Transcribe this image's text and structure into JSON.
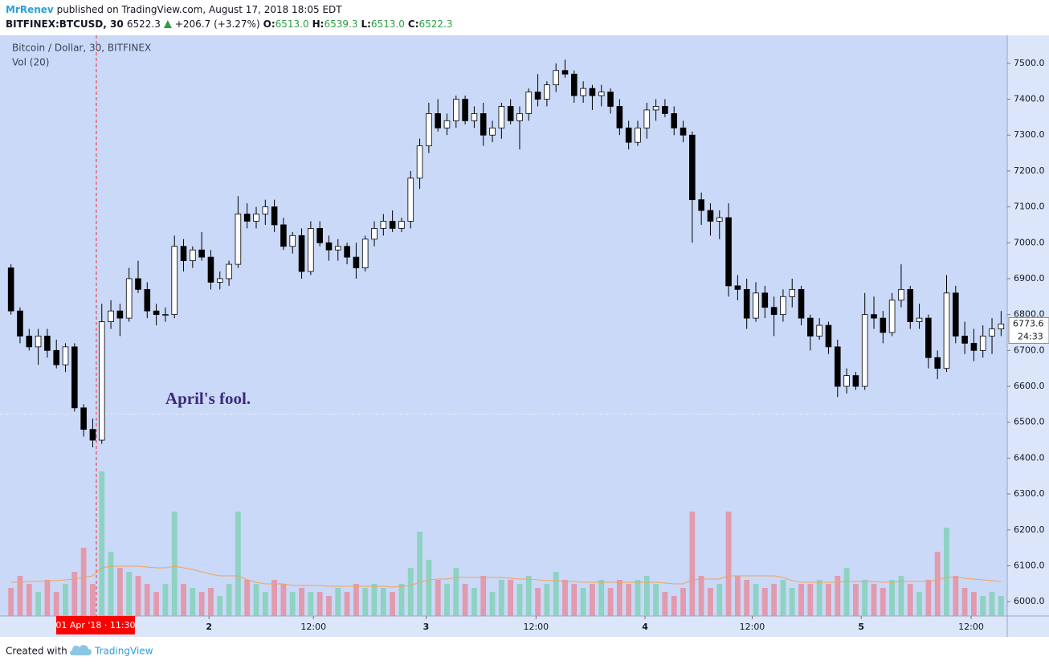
{
  "chart_data": {
    "type": "candlestick",
    "header": {
      "author": "MrRenev",
      "published": "published on TradingView.com, August 17, 2018 18:05 EDT",
      "symbol": "BITFINEX:BTCUSD, 30",
      "last": "6522.3",
      "change": "+206.7 (+3.27%)",
      "ohlc": [
        {
          "label": "O:",
          "value": "6513.0"
        },
        {
          "label": "H:",
          "value": "6539.3"
        },
        {
          "label": "L:",
          "value": "6513.0"
        },
        {
          "label": "C:",
          "value": "6522.3"
        }
      ]
    },
    "title": "Bitcoin / Dollar, 30, BITFINEX",
    "subtitle": "Vol (20)",
    "annotation": {
      "text": "April's fool.",
      "x": 17.5,
      "price": 6562
    },
    "crosshair": {
      "x": 9.9,
      "price": 6522.3,
      "label": "01 Apr '18 · 11:30"
    },
    "countdown": "24:33",
    "footer": {
      "text": "Created with",
      "brand": "TradingView"
    },
    "up_color": "#ffffff",
    "down_color": "#000000",
    "volume_up_color": "#7fcfb3",
    "volume_down_color": "#e8899a",
    "volume_ma_color": "#f5a05a",
    "background": "#c9d9f7",
    "grid": false,
    "xlim": [
      0,
      110
    ],
    "xticks": [
      {
        "value": 22.3,
        "label": "2"
      },
      {
        "value": 33.8,
        "label": "12:00"
      },
      {
        "value": 46.2,
        "label": "3"
      },
      {
        "value": 58.3,
        "label": "12:00"
      },
      {
        "value": 70.3,
        "label": "4"
      },
      {
        "value": 82.1,
        "label": "12:00"
      },
      {
        "value": 94.1,
        "label": "5"
      },
      {
        "value": 106.2,
        "label": "12:00"
      }
    ],
    "ylim": [
      5960,
      7578
    ],
    "yticks": [
      {
        "value": 6000,
        "label": "6000.0"
      },
      {
        "value": 6100,
        "label": "6100.0"
      },
      {
        "value": 6200,
        "label": "6200.0"
      },
      {
        "value": 6300,
        "label": "6300.0"
      },
      {
        "value": 6400,
        "label": "6400.0"
      },
      {
        "value": 6500,
        "label": "6500.0"
      },
      {
        "value": 6600,
        "label": "6600.0"
      },
      {
        "value": 6700,
        "label": "6700.0"
      },
      {
        "value": 6800,
        "label": "6800.0"
      },
      {
        "value": 6900,
        "label": "6900.0"
      },
      {
        "value": 7000,
        "label": "7000.0"
      },
      {
        "value": 7100,
        "label": "7100.0"
      },
      {
        "value": 7200,
        "label": "7200.0"
      },
      {
        "value": 7300,
        "label": "7300.0"
      },
      {
        "value": 7400,
        "label": "7400.0"
      },
      {
        "value": 7500,
        "label": "7500.0"
      }
    ],
    "open": [
      6930,
      6810,
      6740,
      6710,
      6740,
      6700,
      6660,
      6710,
      6540,
      6480,
      6450,
      6780,
      6810,
      6790,
      6900,
      6870,
      6810,
      6800,
      6800,
      6990,
      6950,
      6980,
      6960,
      6890,
      6900,
      6940,
      7080,
      7060,
      7080,
      7100,
      7050,
      6990,
      7020,
      6920,
      7040,
      7000,
      6980,
      6990,
      6960,
      6930,
      7010,
      7040,
      7060,
      7040,
      7060,
      7180,
      7270,
      7360,
      7320,
      7340,
      7400,
      7340,
      7360,
      7300,
      7320,
      7380,
      7340,
      7360,
      7420,
      7400,
      7440,
      7480,
      7470,
      7410,
      7430,
      7410,
      7420,
      7380,
      7320,
      7280,
      7320,
      7370,
      7380,
      7360,
      7320,
      7300,
      7120,
      7090,
      7060,
      7070,
      6880,
      6870,
      6790,
      6860,
      6820,
      6800,
      6850,
      6870,
      6790,
      6740,
      6770,
      6710,
      6600,
      6630,
      6600,
      6800,
      6790,
      6750,
      6840,
      6870,
      6780,
      6790,
      6680,
      6650,
      6860,
      6740,
      6720,
      6700,
      6740,
      6760
    ],
    "high": [
      6940,
      6820,
      6760,
      6760,
      6760,
      6730,
      6720,
      6720,
      6550,
      6510,
      6830,
      6840,
      6830,
      6930,
      6950,
      6890,
      6830,
      6820,
      7020,
      7010,
      6990,
      7030,
      6980,
      6920,
      6950,
      7130,
      7110,
      7100,
      7120,
      7120,
      7070,
      7030,
      7040,
      7060,
      7060,
      7020,
      7010,
      7000,
      7000,
      7020,
      7060,
      7080,
      7090,
      7070,
      7200,
      7290,
      7390,
      7400,
      7360,
      7410,
      7410,
      7380,
      7390,
      7340,
      7390,
      7400,
      7380,
      7430,
      7470,
      7450,
      7500,
      7510,
      7480,
      7450,
      7440,
      7440,
      7430,
      7400,
      7340,
      7340,
      7390,
      7400,
      7400,
      7380,
      7340,
      7310,
      7140,
      7110,
      7090,
      7110,
      6910,
      6900,
      6890,
      6880,
      6850,
      6870,
      6900,
      6880,
      6800,
      6790,
      6780,
      6730,
      6650,
      6640,
      6860,
      6850,
      6810,
      6860,
      6940,
      6880,
      6830,
      6800,
      6700,
      6910,
      6880,
      6780,
      6760,
      6770,
      6790,
      6810
    ],
    "low": [
      6800,
      6720,
      6700,
      6660,
      6680,
      6650,
      6640,
      6530,
      6460,
      6430,
      6440,
      6760,
      6740,
      6780,
      6860,
      6790,
      6770,
      6780,
      6790,
      6920,
      6930,
      6950,
      6870,
      6870,
      6880,
      6930,
      7040,
      7040,
      7050,
      7030,
      6980,
      6970,
      6900,
      6910,
      6990,
      6950,
      6950,
      6940,
      6900,
      6920,
      6990,
      7020,
      7030,
      7030,
      7040,
      7150,
      7250,
      7310,
      7300,
      7320,
      7330,
      7320,
      7270,
      7280,
      7290,
      7330,
      7260,
      7340,
      7380,
      7380,
      7420,
      7460,
      7390,
      7390,
      7370,
      7380,
      7360,
      7300,
      7260,
      7270,
      7290,
      7340,
      7350,
      7300,
      7280,
      7000,
      7050,
      7020,
      7010,
      6850,
      6840,
      6760,
      6780,
      6790,
      6740,
      6780,
      6820,
      6770,
      6700,
      6730,
      6690,
      6570,
      6580,
      6590,
      6590,
      6760,
      6720,
      6740,
      6820,
      6760,
      6760,
      6650,
      6620,
      6640,
      6720,
      6690,
      6670,
      6680,
      6690,
      6740
    ],
    "close": [
      6810,
      6740,
      6710,
      6740,
      6700,
      6660,
      6710,
      6540,
      6480,
      6450,
      6780,
      6810,
      6790,
      6900,
      6870,
      6810,
      6800,
      6800,
      6990,
      6950,
      6980,
      6960,
      6890,
      6900,
      6940,
      7080,
      7060,
      7080,
      7100,
      7050,
      6990,
      7020,
      6920,
      7040,
      7000,
      6980,
      6990,
      6960,
      6930,
      7010,
      7040,
      7060,
      7040,
      7060,
      7180,
      7270,
      7360,
      7320,
      7340,
      7400,
      7340,
      7360,
      7300,
      7320,
      7380,
      7340,
      7360,
      7420,
      7400,
      7440,
      7480,
      7470,
      7410,
      7430,
      7410,
      7420,
      7380,
      7320,
      7280,
      7320,
      7370,
      7380,
      7360,
      7320,
      7300,
      7120,
      7090,
      7060,
      7070,
      6880,
      6870,
      6790,
      6860,
      6820,
      6800,
      6850,
      6870,
      6790,
      6740,
      6770,
      6710,
      6600,
      6630,
      6600,
      6800,
      6790,
      6750,
      6840,
      6870,
      6780,
      6790,
      6680,
      6650,
      6860,
      6740,
      6720,
      6700,
      6740,
      6760,
      6773.6
    ],
    "volume": [
      35,
      50,
      40,
      30,
      45,
      30,
      40,
      55,
      85,
      40,
      180,
      80,
      60,
      55,
      50,
      40,
      30,
      40,
      130,
      40,
      35,
      30,
      35,
      25,
      40,
      130,
      45,
      40,
      30,
      45,
      40,
      30,
      35,
      30,
      30,
      25,
      35,
      30,
      40,
      35,
      40,
      35,
      30,
      40,
      60,
      105,
      70,
      45,
      40,
      60,
      40,
      35,
      50,
      30,
      45,
      45,
      40,
      50,
      35,
      40,
      55,
      45,
      40,
      35,
      40,
      45,
      35,
      45,
      40,
      45,
      50,
      40,
      30,
      25,
      35,
      130,
      50,
      35,
      40,
      130,
      50,
      45,
      40,
      35,
      40,
      45,
      35,
      40,
      40,
      45,
      40,
      50,
      60,
      40,
      45,
      40,
      35,
      45,
      50,
      40,
      30,
      45,
      80,
      110,
      50,
      35,
      30,
      25,
      30,
      25
    ],
    "volume_ma": [
      42,
      42,
      43,
      43,
      44,
      44,
      45,
      46,
      48,
      50,
      60,
      62,
      62,
      62,
      62,
      61,
      60,
      60,
      62,
      60,
      58,
      55,
      52,
      50,
      50,
      50,
      45,
      42,
      40,
      40,
      40,
      38,
      38,
      38,
      38,
      37,
      37,
      37,
      37,
      37,
      37,
      37,
      36,
      37,
      38,
      42,
      45,
      46,
      46,
      48,
      48,
      48,
      48,
      48,
      48,
      47,
      46,
      46,
      45,
      44,
      44,
      43,
      43,
      42,
      42,
      42,
      42,
      42,
      42,
      42,
      42,
      42,
      41,
      40,
      40,
      45,
      46,
      46,
      46,
      50,
      50,
      50,
      50,
      50,
      50,
      48,
      44,
      42,
      42,
      42,
      42,
      42,
      43,
      43,
      43,
      43,
      42,
      42,
      43,
      43,
      43,
      43,
      45,
      48,
      48,
      47,
      46,
      45,
      44,
      43
    ]
  }
}
